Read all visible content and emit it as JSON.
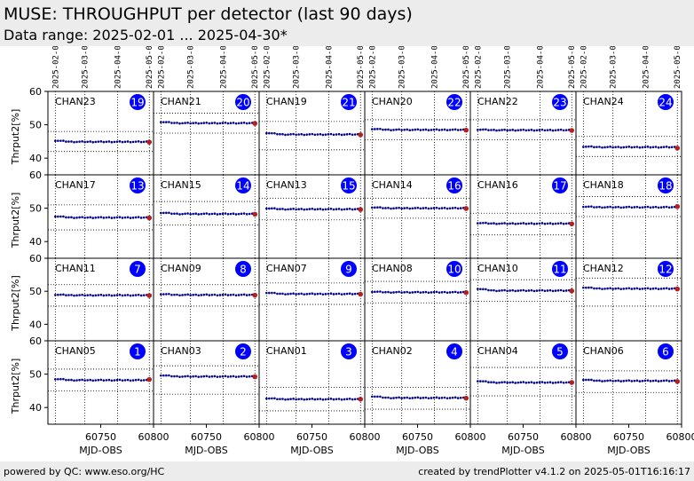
{
  "header": {
    "title": "MUSE: THROUGHPUT per detector (last 90 days)",
    "subtitle": "Data range: 2025-02-01 ... 2025-04-30*"
  },
  "footer": {
    "left": "powered by QC: www.eso.org/HC",
    "right": "created by trendPlotter v4.1.2 on 2025-05-01T16:16:17"
  },
  "chart_data": {
    "type": "scatter",
    "ylabel": "Thrput2[%]",
    "xlabel": "MJD-OBS",
    "ylim": [
      35,
      60
    ],
    "yticks": [
      40,
      50,
      60
    ],
    "xlim": [
      60700,
      60800
    ],
    "xticks": [
      60750,
      60800
    ],
    "date_ticks": [
      "2025-02-01",
      "2025-03-01",
      "2025-04-01",
      "2025-05-01"
    ],
    "date_tick_mjd": [
      60707,
      60735,
      60766,
      60796
    ],
    "point_color": "#00008b",
    "last_point_color": "#b22222",
    "badge_color": "#0000ff",
    "grid": true,
    "panels": [
      {
        "channel": "CHAN23",
        "number": "19",
        "start": 45.3,
        "level": 44.9,
        "last": 44.8,
        "ref_lines": [
          48.0,
          42.0
        ]
      },
      {
        "channel": "CHAN21",
        "number": "20",
        "start": 50.9,
        "level": 50.5,
        "last": 50.4,
        "ref_lines": [
          53.5,
          47.5
        ]
      },
      {
        "channel": "CHAN19",
        "number": "21",
        "start": 47.6,
        "level": 47.1,
        "last": 47.0,
        "ref_lines": [
          51.0,
          42.5
        ]
      },
      {
        "channel": "CHAN20",
        "number": "22",
        "start": 48.8,
        "level": 48.5,
        "last": 48.4,
        "ref_lines": [
          51.5,
          45.5
        ]
      },
      {
        "channel": "CHAN22",
        "number": "23",
        "start": 48.6,
        "level": 48.4,
        "last": 48.3,
        "ref_lines": [
          51.5,
          45.5
        ]
      },
      {
        "channel": "CHAN24",
        "number": "24",
        "start": 43.5,
        "level": 43.3,
        "last": 43.0,
        "ref_lines": [
          46.5,
          40.5
        ]
      },
      {
        "channel": "CHAN17",
        "number": "13",
        "start": 47.6,
        "level": 47.2,
        "last": 47.1,
        "ref_lines": [
          51.0,
          43.5
        ]
      },
      {
        "channel": "CHAN15",
        "number": "14",
        "start": 48.7,
        "level": 48.3,
        "last": 48.2,
        "ref_lines": [
          52.0,
          45.0
        ]
      },
      {
        "channel": "CHAN13",
        "number": "15",
        "start": 50.0,
        "level": 49.7,
        "last": 49.6,
        "ref_lines": [
          53.0,
          46.5
        ]
      },
      {
        "channel": "CHAN14",
        "number": "16",
        "start": 50.3,
        "level": 50.0,
        "last": 49.9,
        "ref_lines": [
          53.0,
          47.0
        ]
      },
      {
        "channel": "CHAN16",
        "number": "17",
        "start": 45.6,
        "level": 45.4,
        "last": 45.3,
        "ref_lines": [
          48.5,
          42.0
        ]
      },
      {
        "channel": "CHAN18",
        "number": "18",
        "start": 50.5,
        "level": 50.3,
        "last": 50.5,
        "ref_lines": [
          53.5,
          47.5
        ]
      },
      {
        "channel": "CHAN11",
        "number": "7",
        "start": 49.0,
        "level": 48.8,
        "last": 48.7,
        "ref_lines": [
          52.0,
          45.5
        ]
      },
      {
        "channel": "CHAN09",
        "number": "8",
        "start": 49.2,
        "level": 48.9,
        "last": 48.8,
        "ref_lines": [
          52.0,
          45.5
        ]
      },
      {
        "channel": "CHAN07",
        "number": "9",
        "start": 49.6,
        "level": 49.2,
        "last": 49.1,
        "ref_lines": [
          52.5,
          46.0
        ]
      },
      {
        "channel": "CHAN08",
        "number": "10",
        "start": 49.9,
        "level": 49.7,
        "last": 49.6,
        "ref_lines": [
          53.0,
          46.5
        ]
      },
      {
        "channel": "CHAN10",
        "number": "11",
        "start": 50.8,
        "level": 50.2,
        "last": 50.1,
        "ref_lines": [
          53.5,
          47.0
        ]
      },
      {
        "channel": "CHAN12",
        "number": "12",
        "start": 51.2,
        "level": 50.8,
        "last": 50.7,
        "ref_lines": [
          54.0,
          45.5
        ]
      },
      {
        "channel": "CHAN05",
        "number": "1",
        "start": 48.6,
        "level": 48.2,
        "last": 48.4,
        "ref_lines": [
          51.5,
          45.0
        ]
      },
      {
        "channel": "CHAN03",
        "number": "2",
        "start": 49.7,
        "level": 49.3,
        "last": 49.2,
        "ref_lines": [
          52.5,
          44.0
        ]
      },
      {
        "channel": "CHAN01",
        "number": "3",
        "start": 42.8,
        "level": 42.5,
        "last": 42.5,
        "ref_lines": [
          46.0,
          39.0
        ]
      },
      {
        "channel": "CHAN02",
        "number": "4",
        "start": 43.4,
        "level": 42.9,
        "last": 42.8,
        "ref_lines": [
          46.0,
          39.5
        ]
      },
      {
        "channel": "CHAN04",
        "number": "5",
        "start": 48.0,
        "level": 47.5,
        "last": 47.5,
        "ref_lines": [
          52.0,
          43.5
        ]
      },
      {
        "channel": "CHAN06",
        "number": "6",
        "start": 48.4,
        "level": 48.0,
        "last": 47.8,
        "ref_lines": [
          51.0,
          44.5
        ]
      }
    ]
  }
}
